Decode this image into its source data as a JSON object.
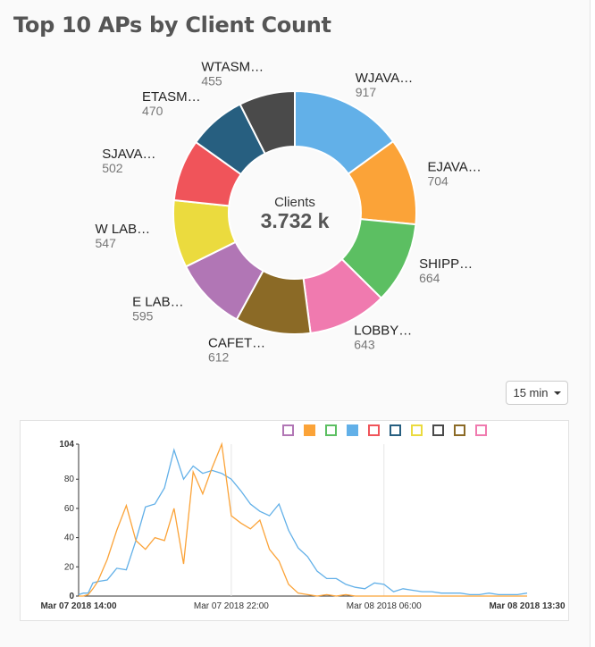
{
  "widget": {
    "title": "Top 10 APs by Client Count",
    "interval_label": "15 min"
  },
  "donut": {
    "center_label": "Clients",
    "center_value": "3.732 k",
    "segments": [
      {
        "label": "WJAVA…",
        "value": 917,
        "value_text": "917",
        "color": "#62b0e8"
      },
      {
        "label": "EJAVA…",
        "value": 704,
        "value_text": "704",
        "color": "#fba338"
      },
      {
        "label": "SHIPP…",
        "value": 664,
        "value_text": "664",
        "color": "#5cbf62"
      },
      {
        "label": "LOBBY…",
        "value": 643,
        "value_text": "643",
        "color": "#f07aaf"
      },
      {
        "label": "CAFET…",
        "value": 612,
        "value_text": "612",
        "color": "#8b6a26"
      },
      {
        "label": "E LAB…",
        "value": 595,
        "value_text": "595",
        "color": "#b176b5"
      },
      {
        "label": "W LAB…",
        "value": 547,
        "value_text": "547",
        "color": "#ebdb3e"
      },
      {
        "label": "SJAVA…",
        "value": 502,
        "value_text": "502",
        "color": "#f0545a"
      },
      {
        "label": "ETASM…",
        "value": 470,
        "value_text": "470",
        "color": "#275f80"
      },
      {
        "label": "WTASM…",
        "value": 455,
        "value_text": "455",
        "color": "#4a4a4a"
      }
    ]
  },
  "legend_colors": [
    "#b176b5",
    "#fba338",
    "#5cbf62",
    "#62b0e8",
    "#f0545a",
    "#275f80",
    "#ebdb3e",
    "#4a4a4a",
    "#8b6a26",
    "#f07aaf"
  ],
  "chart_data": [
    {
      "type": "pie",
      "categories": [
        "WJAVA…",
        "EJAVA…",
        "SHIPP…",
        "LOBBY…",
        "CAFET…",
        "E LAB…",
        "W LAB…",
        "SJAVA…",
        "ETASM…",
        "WTASM…"
      ],
      "values": [
        917,
        704,
        664,
        643,
        612,
        595,
        547,
        502,
        470,
        455
      ],
      "center_label": "Clients",
      "center_value": "3.732 k"
    },
    {
      "type": "line",
      "x_tick_labels": [
        "Mar 07 2018 14:00",
        "Mar 07 2018 22:00",
        "Mar 08 2018 06:00",
        "Mar 08 2018 13:30"
      ],
      "y_tick_labels": [
        "0",
        "20",
        "40",
        "60",
        "80",
        "104"
      ],
      "ylim": [
        0,
        104
      ],
      "x_hours": [
        0,
        23.5
      ],
      "grid": true,
      "series": [
        {
          "color": "#62b0e8",
          "x": [
            0,
            0.25,
            0.5,
            0.75,
            1,
            1.5,
            2,
            2.5,
            3,
            3.5,
            4,
            4.5,
            5,
            5.5,
            6,
            6.5,
            7,
            7.5,
            8,
            8.5,
            9,
            9.5,
            10,
            10.5,
            11,
            11.5,
            12,
            12.5,
            13,
            13.5,
            14,
            14.5,
            15,
            15.5,
            16,
            16.5,
            17,
            17.5,
            18,
            18.5,
            19,
            19.5,
            20,
            20.5,
            21,
            21.5,
            22,
            22.5,
            23,
            23.5
          ],
          "values": [
            1,
            2,
            2,
            9,
            10,
            11,
            19,
            18,
            38,
            61,
            63,
            74,
            100,
            80,
            89,
            84,
            86,
            84,
            80,
            72,
            63,
            58,
            55,
            63,
            45,
            33,
            27,
            17,
            12,
            12,
            8,
            6,
            5,
            9,
            8,
            3,
            5,
            4,
            3,
            3,
            2,
            2,
            2,
            1,
            1,
            2,
            1,
            1,
            1,
            2
          ]
        },
        {
          "color": "#fba338",
          "x": [
            0,
            0.25,
            0.5,
            0.75,
            1,
            1.5,
            2,
            2.5,
            3,
            3.5,
            4,
            4.5,
            5,
            5.5,
            6,
            6.5,
            7,
            7.5,
            8,
            8.5,
            9,
            9.5,
            10,
            10.5,
            11,
            11.5,
            12,
            12.5,
            13,
            13.5,
            14,
            14.5,
            15,
            15.5,
            16,
            16.5,
            17,
            17.5,
            18,
            18.5,
            19,
            19.5,
            20,
            20.5,
            21,
            21.5,
            22,
            22.5,
            23,
            23.5
          ],
          "values": [
            0,
            0,
            1,
            5,
            10,
            25,
            45,
            62,
            38,
            32,
            40,
            38,
            60,
            22,
            85,
            70,
            88,
            104,
            55,
            50,
            46,
            52,
            32,
            24,
            8,
            2,
            1,
            0,
            1,
            0,
            1,
            0,
            0,
            0,
            0,
            0,
            0,
            0,
            0,
            0,
            0,
            0,
            0,
            0,
            0,
            0,
            0,
            0,
            0,
            0
          ]
        }
      ]
    }
  ]
}
